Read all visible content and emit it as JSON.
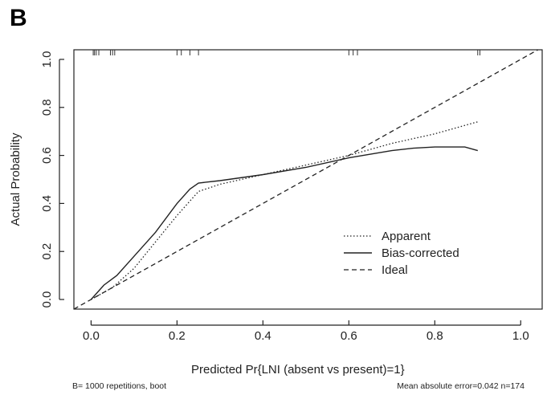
{
  "panel_label": "B",
  "footnote_left": "B= 1000 repetitions, boot",
  "footnote_right": "Mean absolute error=0.042 n=174",
  "chart_data": {
    "type": "line",
    "title": "",
    "xlabel": "Predicted Pr{LNI (absent vs present)=1}",
    "ylabel": "Actual Probability",
    "xlim": [
      -0.04,
      1.05
    ],
    "ylim": [
      -0.04,
      1.04
    ],
    "x_ticks": [
      "0.0",
      "0.2",
      "0.4",
      "0.6",
      "0.8",
      "1.0"
    ],
    "y_ticks": [
      "0.0",
      "0.2",
      "0.4",
      "0.6",
      "0.8",
      "1.0"
    ],
    "grid": false,
    "legend_position": "bottom-right",
    "series": [
      {
        "name": "Apparent",
        "style": "dotted",
        "x": [
          0.0,
          0.05,
          0.1,
          0.15,
          0.2,
          0.25,
          0.3,
          0.4,
          0.5,
          0.6,
          0.7,
          0.8,
          0.9
        ],
        "y": [
          0.0,
          0.05,
          0.13,
          0.24,
          0.35,
          0.45,
          0.48,
          0.52,
          0.56,
          0.6,
          0.65,
          0.69,
          0.74
        ]
      },
      {
        "name": "Bias-corrected",
        "style": "solid",
        "x": [
          0.0,
          0.03,
          0.06,
          0.1,
          0.15,
          0.2,
          0.23,
          0.25,
          0.3,
          0.4,
          0.5,
          0.6,
          0.7,
          0.75,
          0.8,
          0.85,
          0.87,
          0.9
        ],
        "y": [
          0.0,
          0.06,
          0.1,
          0.18,
          0.28,
          0.4,
          0.46,
          0.485,
          0.495,
          0.52,
          0.55,
          0.59,
          0.62,
          0.63,
          0.635,
          0.635,
          0.635,
          0.62
        ]
      },
      {
        "name": "Ideal",
        "style": "dashed",
        "x": [
          -0.04,
          1.05
        ],
        "y": [
          -0.04,
          1.05
        ]
      }
    ],
    "rug_x": [
      0.005,
      0.008,
      0.012,
      0.018,
      0.045,
      0.05,
      0.055,
      0.2,
      0.21,
      0.23,
      0.25,
      0.6,
      0.61,
      0.62,
      0.9,
      0.905
    ]
  }
}
